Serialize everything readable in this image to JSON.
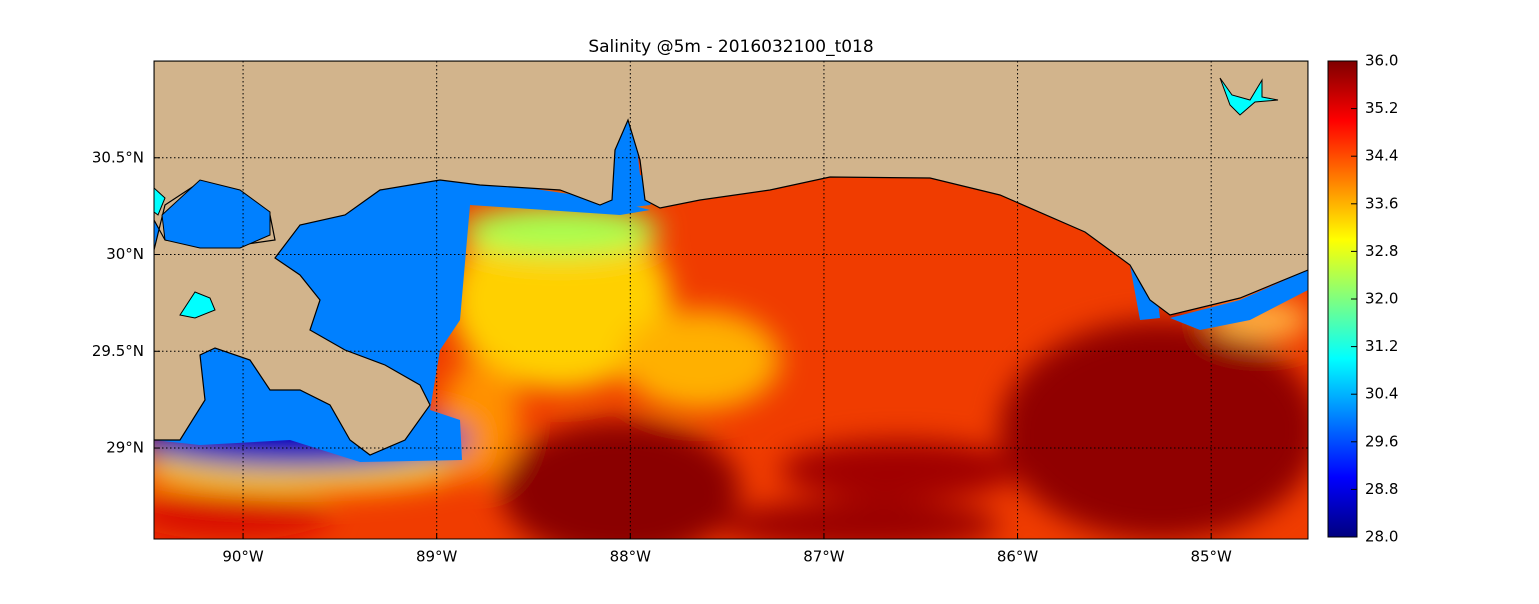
{
  "chart_data": {
    "type": "map",
    "title": "Salinity @5m - 2016032100_t018",
    "xlim": [
      -90.46,
      -84.5
    ],
    "ylim": [
      28.53,
      31.0
    ],
    "xticks": [
      {
        "value": -90,
        "label": "90°W"
      },
      {
        "value": -89,
        "label": "89°W"
      },
      {
        "value": -88,
        "label": "88°W"
      },
      {
        "value": -87,
        "label": "87°W"
      },
      {
        "value": -86,
        "label": "86°W"
      },
      {
        "value": -85,
        "label": "85°W"
      }
    ],
    "yticks": [
      {
        "value": 29,
        "label": "29°N"
      },
      {
        "value": 29.5,
        "label": "29.5°N"
      },
      {
        "value": 30,
        "label": "30°N"
      },
      {
        "value": 30.5,
        "label": "30.5°N"
      }
    ],
    "grid": true,
    "colorbar": {
      "lim": [
        28,
        36
      ],
      "ticks": [
        {
          "value": 28,
          "label": "28.0"
        },
        {
          "value": 28.8,
          "label": "28.8"
        },
        {
          "value": 29.6,
          "label": "29.6"
        },
        {
          "value": 30.4,
          "label": "30.4"
        },
        {
          "value": 31.2,
          "label": "31.2"
        },
        {
          "value": 32,
          "label": "32.0"
        },
        {
          "value": 32.8,
          "label": "32.8"
        },
        {
          "value": 33.6,
          "label": "33.6"
        },
        {
          "value": 34.4,
          "label": "34.4"
        },
        {
          "value": 35.2,
          "label": "35.2"
        },
        {
          "value": 36,
          "label": "36.0"
        }
      ]
    }
  }
}
